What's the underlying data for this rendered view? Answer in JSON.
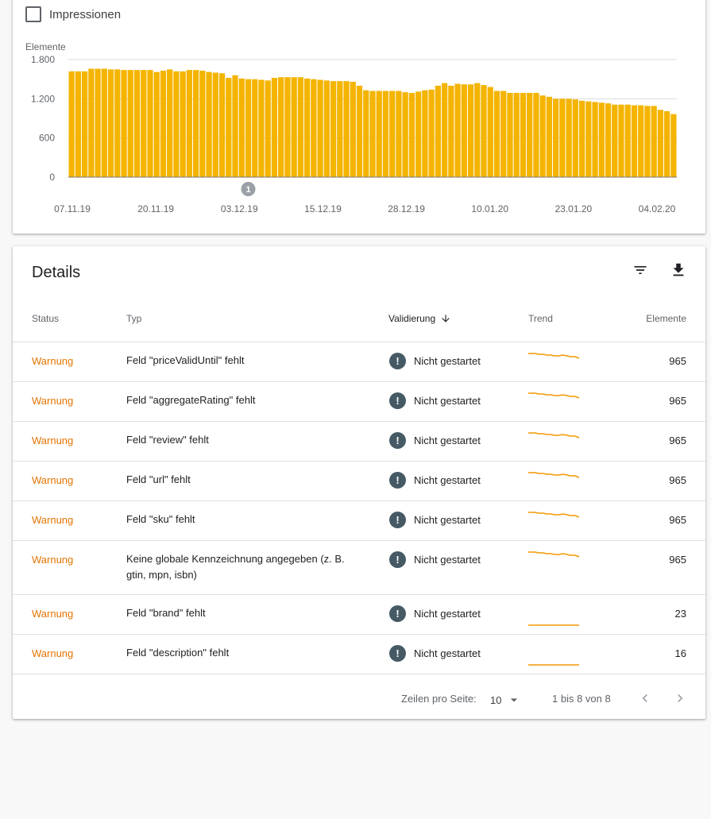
{
  "chart_toggle": {
    "label": "Impressionen",
    "checked": false
  },
  "chart_data": {
    "type": "bar",
    "ylabel": "Elemente",
    "ylim": [
      0,
      1800
    ],
    "yticks": [
      0,
      600,
      1200,
      1800
    ],
    "ytick_labels": [
      "0",
      "600",
      "1.200",
      "1.800"
    ],
    "x_tick_labels": [
      "07.11.19",
      "20.11.19",
      "03.12.19",
      "15.12.19",
      "28.12.19",
      "10.01.20",
      "23.01.20",
      "04.02.20"
    ],
    "annotation": {
      "label": "1",
      "index": 27
    },
    "colors": {
      "bar": "#f4b400",
      "axis": "#dadce0",
      "baseline": "#7a7a7a"
    },
    "values": [
      1620,
      1620,
      1620,
      1660,
      1660,
      1660,
      1650,
      1650,
      1640,
      1640,
      1640,
      1640,
      1640,
      1610,
      1630,
      1650,
      1620,
      1620,
      1640,
      1640,
      1630,
      1610,
      1600,
      1590,
      1520,
      1560,
      1510,
      1500,
      1500,
      1490,
      1480,
      1520,
      1530,
      1530,
      1530,
      1530,
      1510,
      1500,
      1490,
      1480,
      1470,
      1470,
      1470,
      1460,
      1400,
      1330,
      1320,
      1320,
      1320,
      1320,
      1320,
      1300,
      1290,
      1310,
      1330,
      1340,
      1400,
      1440,
      1400,
      1430,
      1420,
      1420,
      1440,
      1410,
      1380,
      1320,
      1320,
      1290,
      1290,
      1290,
      1290,
      1290,
      1250,
      1230,
      1200,
      1200,
      1200,
      1190,
      1170,
      1160,
      1150,
      1140,
      1130,
      1110,
      1110,
      1110,
      1100,
      1100,
      1090,
      1090,
      1030,
      1010,
      965
    ]
  },
  "details": {
    "title": "Details",
    "icons": {
      "filter": "filter-list-icon",
      "download": "download-icon"
    },
    "headers": {
      "status": "Status",
      "type": "Typ",
      "validation": "Validierung",
      "trend": "Trend",
      "count": "Elemente"
    },
    "rows": [
      {
        "status": "Warnung",
        "type": "Feld \"priceValidUntil\" fehlt",
        "validation": "Nicht gestartet",
        "count": "965",
        "trend": "declining"
      },
      {
        "status": "Warnung",
        "type": "Feld \"aggregateRating\" fehlt",
        "validation": "Nicht gestartet",
        "count": "965",
        "trend": "declining"
      },
      {
        "status": "Warnung",
        "type": "Feld \"review\" fehlt",
        "validation": "Nicht gestartet",
        "count": "965",
        "trend": "declining"
      },
      {
        "status": "Warnung",
        "type": "Feld \"url\" fehlt",
        "validation": "Nicht gestartet",
        "count": "965",
        "trend": "declining"
      },
      {
        "status": "Warnung",
        "type": "Feld \"sku\" fehlt",
        "validation": "Nicht gestartet",
        "count": "965",
        "trend": "declining"
      },
      {
        "status": "Warnung",
        "type": "Keine globale Kennzeichnung angegeben (z. B. gtin, mpn, isbn)",
        "validation": "Nicht gestartet",
        "count": "965",
        "trend": "declining"
      },
      {
        "status": "Warnung",
        "type": "Feld \"brand\" fehlt",
        "validation": "Nicht gestartet",
        "count": "23",
        "trend": "flat"
      },
      {
        "status": "Warnung",
        "type": "Feld \"description\" fehlt",
        "validation": "Nicht gestartet",
        "count": "16",
        "trend": "flat"
      }
    ],
    "colors": {
      "warning": "#e37400",
      "trend": "#f29900",
      "validation_icon": "#455a64"
    }
  },
  "pagination": {
    "rows_per_page_label": "Zeilen pro Seite:",
    "rows_per_page": "10",
    "range": "1 bis 8 von 8"
  }
}
